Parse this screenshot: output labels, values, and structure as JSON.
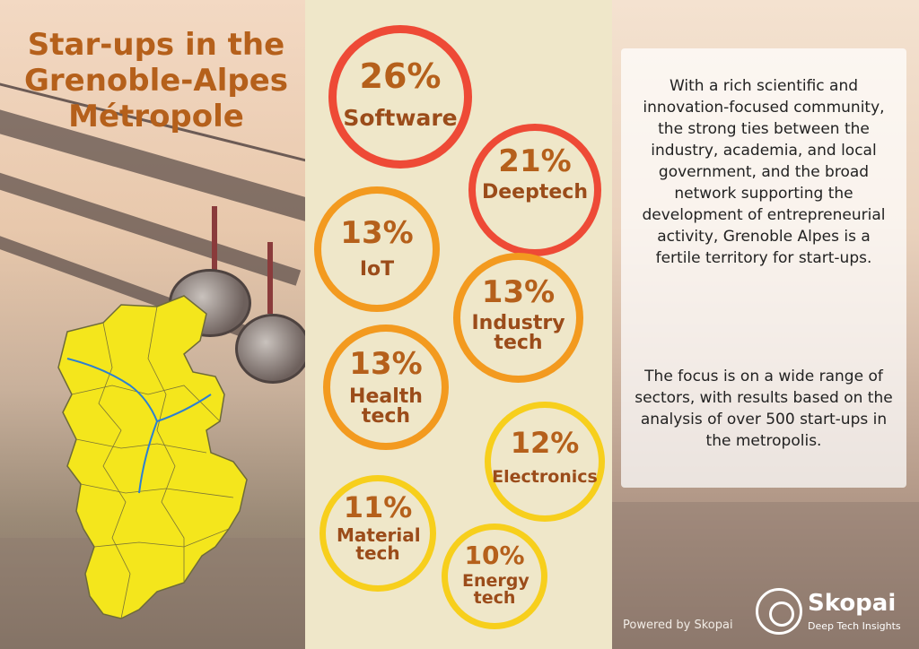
{
  "title": "Star-ups in the Grenoble-Alpes Métropole",
  "colors": {
    "title": "#b5601b",
    "label": "#9b4c1a",
    "ring_red": "#ee4a36",
    "ring_orange": "#f39a1f",
    "ring_yellow": "#f7cf1c",
    "map_fill": "#f4e61c"
  },
  "sectors": [
    {
      "percent": "26%",
      "label": "Software"
    },
    {
      "percent": "21%",
      "label": "Deeptech"
    },
    {
      "percent": "13%",
      "label": "IoT"
    },
    {
      "percent": "13%",
      "label": "Industry tech"
    },
    {
      "percent": "13%",
      "label": "Health tech"
    },
    {
      "percent": "12%",
      "label": "Electronics"
    },
    {
      "percent": "11%",
      "label": "Material tech"
    },
    {
      "percent": "10%",
      "label": "Energy tech"
    }
  ],
  "info": {
    "paragraph1": "With a rich scientific and innovation-focused community, the strong ties between the industry, academia, and local government, and the broad network supporting the development of entrepreneurial activity, Grenoble Alpes is a fertile territory for start-ups.",
    "paragraph2": "The focus is on a wide range of sectors, with results based on the analysis of over 500 start-ups in the metropolis."
  },
  "footer": {
    "powered_by": "Powered by Skopai",
    "logo_name": "Skopai",
    "logo_tagline": "Deep Tech Insights"
  },
  "icons": {
    "logo": "skopai-logo-icon",
    "map": "metropole-map-icon"
  }
}
